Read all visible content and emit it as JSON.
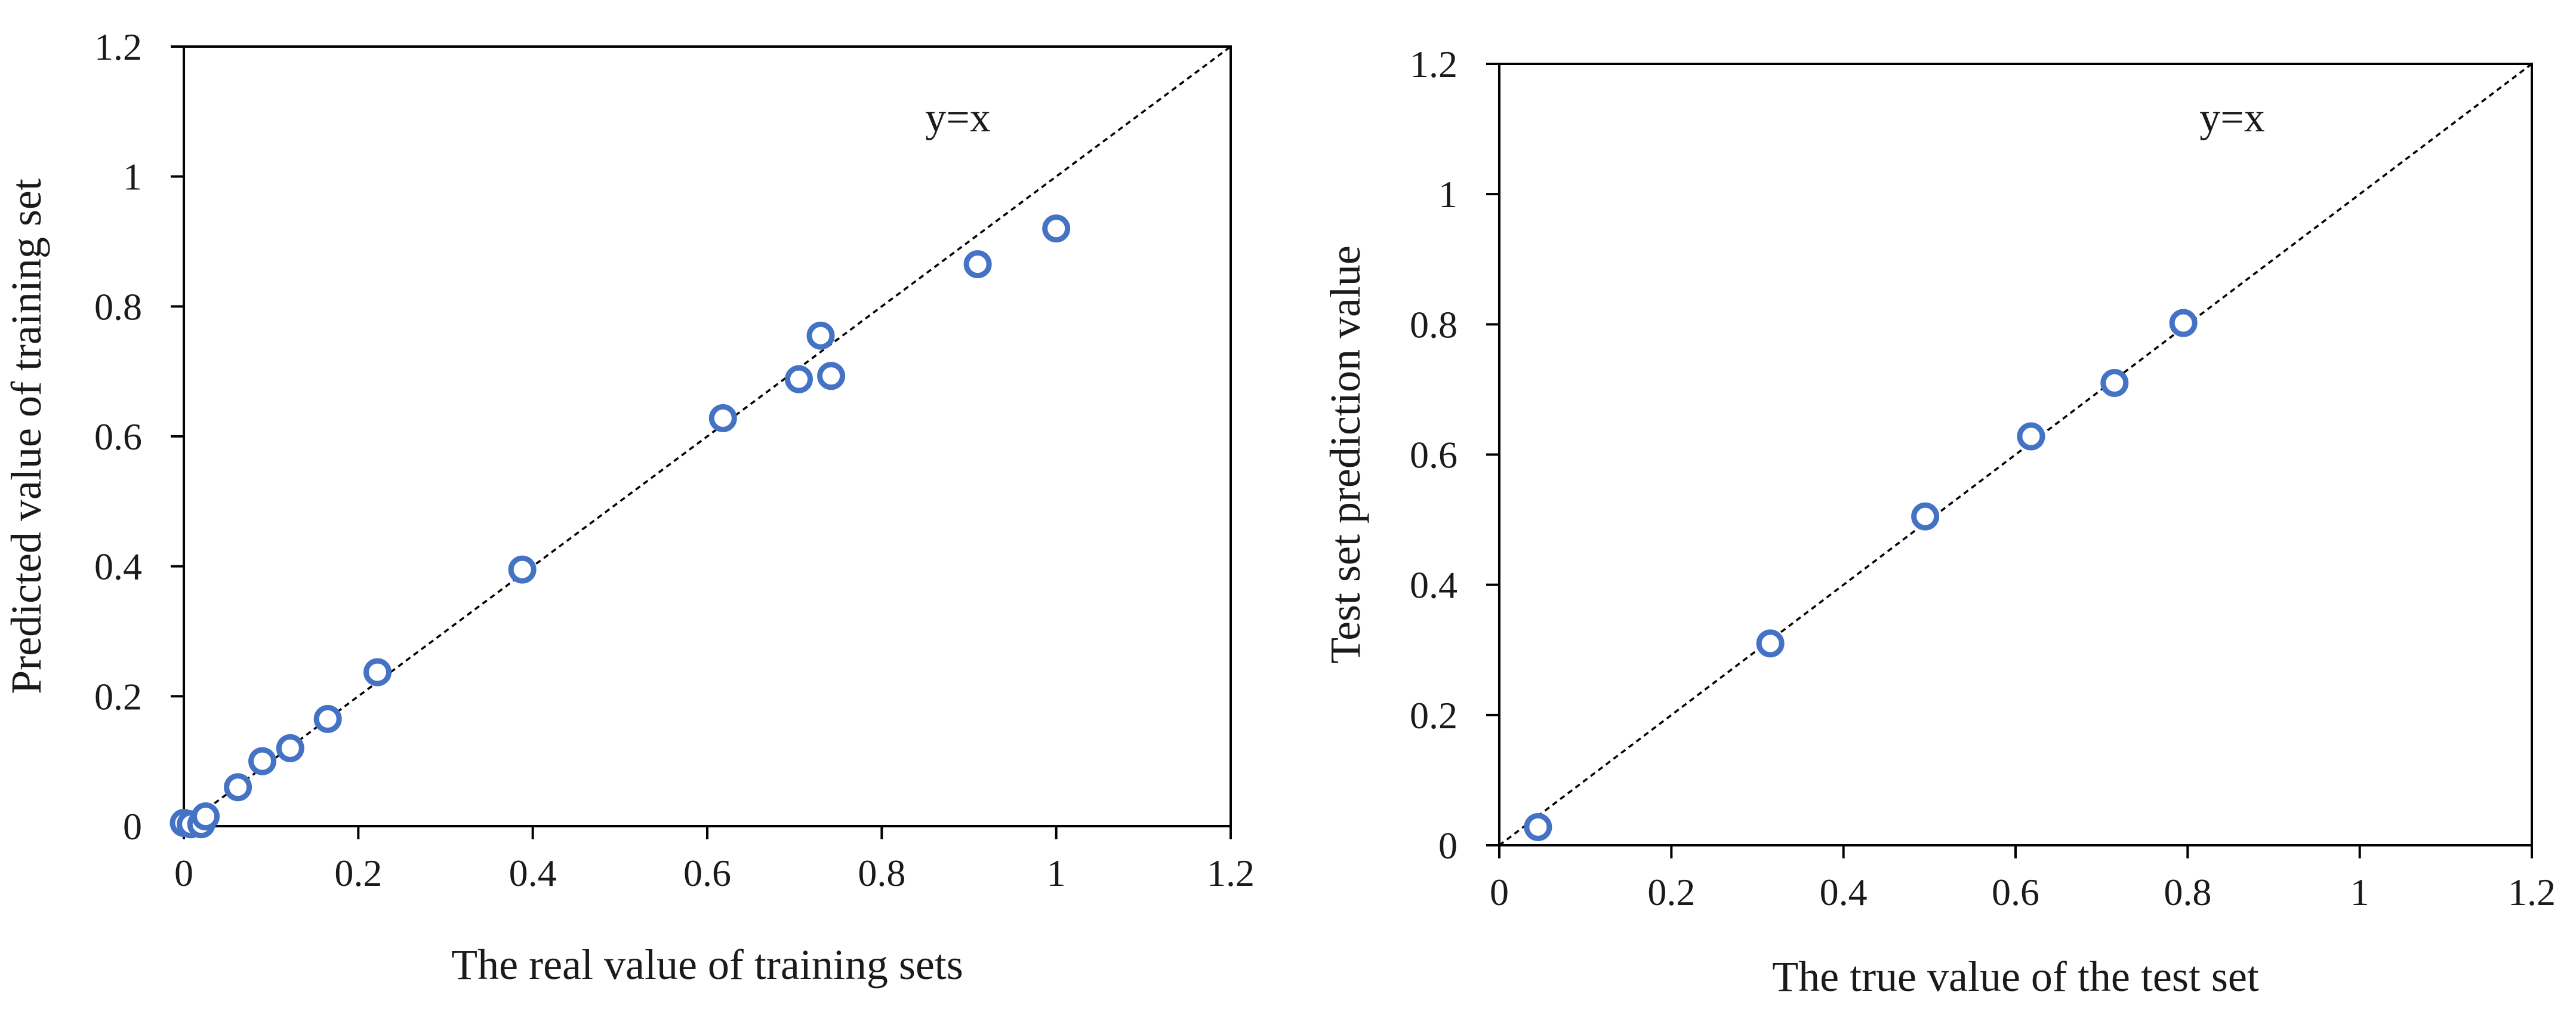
{
  "colors": {
    "marker": "#4472C4",
    "axis": "#000000",
    "refline": "#000000"
  },
  "chart_data": [
    {
      "type": "scatter",
      "title": "",
      "xlabel": "The real value of training sets",
      "ylabel": "Predicted value of training set",
      "xlim": [
        0,
        1.2
      ],
      "ylim": [
        0,
        1.2
      ],
      "xticks": [
        "0",
        "0.2",
        "0.4",
        "0.6",
        "0.8",
        "1",
        "1.2"
      ],
      "yticks": [
        "0",
        "0.2",
        "0.4",
        "0.6",
        "0.8",
        "1",
        "1.2"
      ],
      "reference_line": {
        "label": "y=x",
        "style": "dotted"
      },
      "grid": false,
      "series": [
        {
          "name": "training set",
          "marker": "open-circle",
          "points": [
            [
              0.0,
              0.005
            ],
            [
              0.008,
              0.003
            ],
            [
              0.02,
              0.003
            ],
            [
              0.025,
              0.015
            ],
            [
              0.062,
              0.06
            ],
            [
              0.09,
              0.1
            ],
            [
              0.122,
              0.12
            ],
            [
              0.165,
              0.165
            ],
            [
              0.222,
              0.237
            ],
            [
              0.388,
              0.395
            ],
            [
              0.618,
              0.628
            ],
            [
              0.705,
              0.688
            ],
            [
              0.73,
              0.755
            ],
            [
              0.742,
              0.693
            ],
            [
              0.91,
              0.865
            ],
            [
              1.0,
              0.92
            ]
          ]
        }
      ]
    },
    {
      "type": "scatter",
      "title": "",
      "xlabel": "The true value of the test set",
      "ylabel": "Test set prediction value",
      "xlim": [
        0,
        1.2
      ],
      "ylim": [
        0,
        1.2
      ],
      "xticks": [
        "0",
        "0.2",
        "0.4",
        "0.6",
        "0.8",
        "1",
        "1.2"
      ],
      "yticks": [
        "0",
        "0.2",
        "0.4",
        "0.6",
        "0.8",
        "1",
        "1.2"
      ],
      "reference_line": {
        "label": "y=x",
        "style": "dotted"
      },
      "grid": false,
      "series": [
        {
          "name": "test set",
          "marker": "open-circle",
          "points": [
            [
              0.045,
              0.028
            ],
            [
              0.315,
              0.31
            ],
            [
              0.495,
              0.505
            ],
            [
              0.618,
              0.628
            ],
            [
              0.715,
              0.71
            ],
            [
              0.795,
              0.802
            ]
          ]
        }
      ]
    }
  ]
}
